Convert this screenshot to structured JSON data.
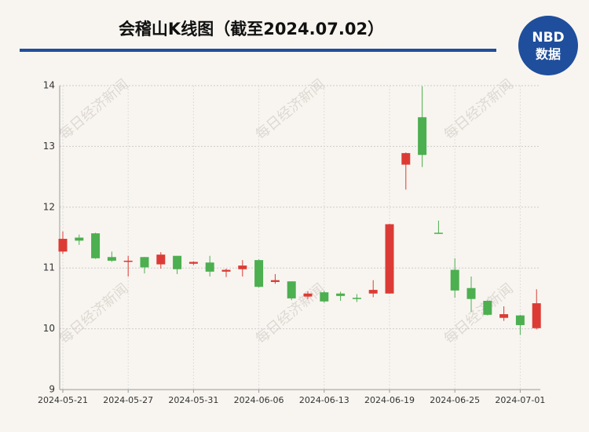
{
  "chart_data": {
    "type": "candlestick",
    "title": "会稽山K线图（截至2024.07.02）",
    "logo": {
      "top": "NBD",
      "bottom": "数据"
    },
    "watermark": "每日经济新闻",
    "categories": [
      "2024-05-21",
      null,
      null,
      null,
      "2024-05-27",
      null,
      null,
      null,
      "2024-05-31",
      null,
      null,
      null,
      "2024-06-06",
      null,
      null,
      null,
      "2024-06-13",
      null,
      null,
      null,
      "2024-06-19",
      null,
      null,
      null,
      "2024-06-25",
      null,
      null,
      null,
      "2024-07-01",
      null
    ],
    "open": [
      11.27,
      11.5,
      11.57,
      11.18,
      11.1,
      11.18,
      11.06,
      11.2,
      11.07,
      11.09,
      10.94,
      10.98,
      11.13,
      10.77,
      10.78,
      10.53,
      10.6,
      10.58,
      10.51,
      10.58,
      10.58,
      12.7,
      13.48,
      11.58,
      10.97,
      10.67,
      10.46,
      10.18,
      10.22,
      10.01
    ],
    "high": [
      11.6,
      11.55,
      11.58,
      11.27,
      11.2,
      11.18,
      11.26,
      11.2,
      11.11,
      11.2,
      10.99,
      11.13,
      11.14,
      10.9,
      10.78,
      10.62,
      10.62,
      10.61,
      10.57,
      10.8,
      11.73,
      12.9,
      13.99,
      11.78,
      11.16,
      10.86,
      10.47,
      10.37,
      10.23,
      10.65
    ],
    "low": [
      11.23,
      11.38,
      11.15,
      11.1,
      10.86,
      10.91,
      10.99,
      10.9,
      11.05,
      10.86,
      10.85,
      10.86,
      10.68,
      10.74,
      10.47,
      10.49,
      10.43,
      10.46,
      10.44,
      10.52,
      10.58,
      12.29,
      12.66,
      11.57,
      10.51,
      10.28,
      10.22,
      10.13,
      9.9,
      9.99
    ],
    "close": [
      11.48,
      11.45,
      11.16,
      11.12,
      11.12,
      11.01,
      11.22,
      10.98,
      11.1,
      10.94,
      10.97,
      11.04,
      10.69,
      10.8,
      10.5,
      10.58,
      10.45,
      10.54,
      10.49,
      10.64,
      11.72,
      12.89,
      12.86,
      11.57,
      10.63,
      10.49,
      10.23,
      10.24,
      10.06,
      10.42
    ],
    "up_color": "#dc3b35",
    "down_color": "#4caf50",
    "ylim": [
      9,
      14
    ],
    "yticks": [
      9,
      10,
      11,
      12,
      13,
      14
    ],
    "grid": true
  }
}
